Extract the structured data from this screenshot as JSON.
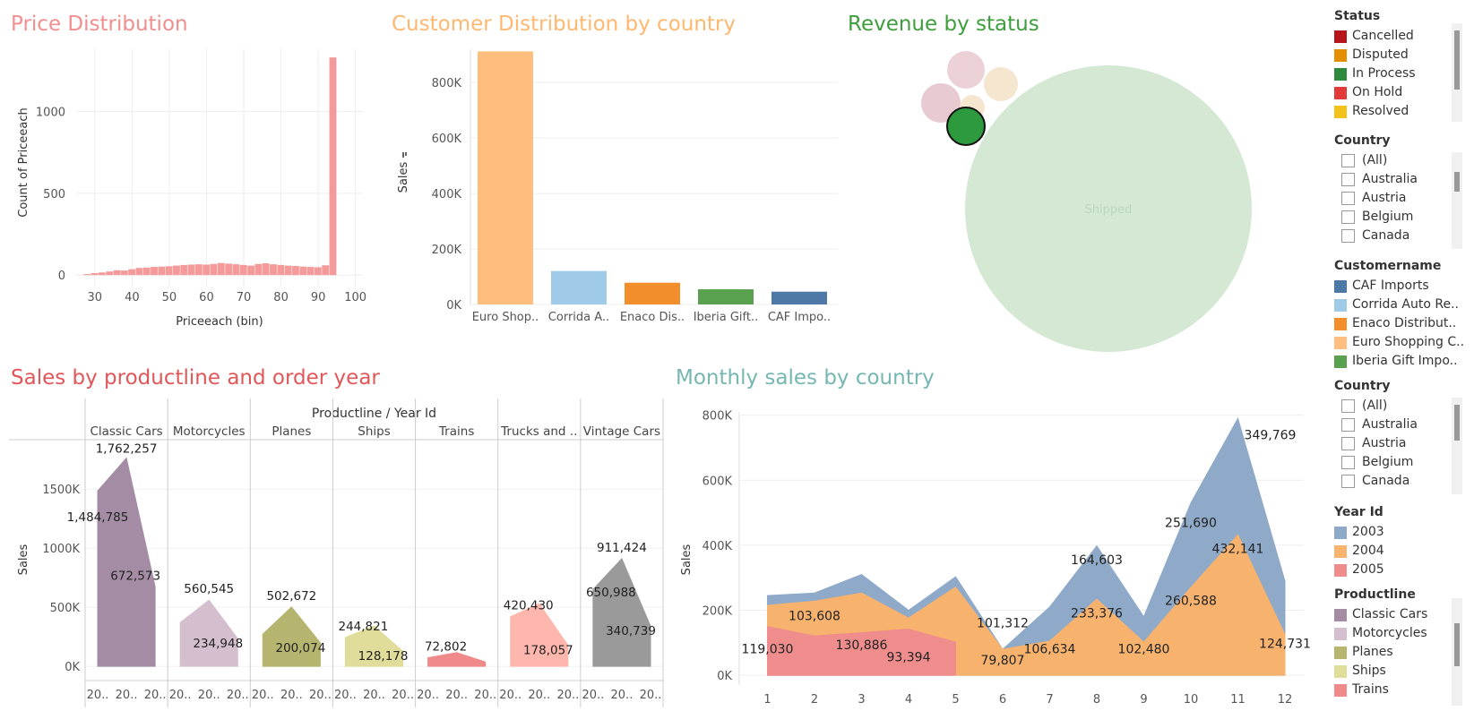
{
  "titles": {
    "price": "Price Distribution",
    "customer": "Customer Distribution by country",
    "revenue": "Revenue by status",
    "productline": "Sales by productline and order year",
    "monthly": "Monthly sales by country"
  },
  "colors": {
    "price_title": "#f28e8e",
    "customer_title": "#ffb870",
    "revenue_title": "#3c9e3c",
    "productline_title": "#e15759",
    "monthly_title": "#76b7b2"
  },
  "price_chart": {
    "type": "bar",
    "xlabel": "Priceeach (bin)",
    "ylabel": "Count of Priceeach",
    "xticks": [
      30,
      40,
      50,
      60,
      70,
      80,
      90,
      100
    ],
    "yticks": [
      0,
      500,
      1000
    ],
    "ylim": [
      -70,
      1380
    ],
    "xlim": [
      25,
      102
    ],
    "bin_start": 27,
    "bin_width": 2,
    "values": [
      6,
      12,
      16,
      22,
      30,
      28,
      36,
      44,
      46,
      50,
      52,
      54,
      58,
      62,
      64,
      66,
      64,
      68,
      74,
      70,
      66,
      62,
      58,
      68,
      72,
      66,
      62,
      58,
      56,
      52,
      50,
      48,
      60,
      1330
    ]
  },
  "customer_chart": {
    "type": "bar",
    "ylabel": "Sales",
    "ylim": [
      0,
      920000
    ],
    "yticks": [
      0,
      200000,
      400000,
      600000,
      800000
    ],
    "ytick_labels": [
      "0K",
      "200K",
      "400K",
      "600K",
      "800K"
    ],
    "categories": [
      "Euro Shop..",
      "Corrida A..",
      "Enaco Dis..",
      "Iberia Gift..",
      "CAF Impo.."
    ],
    "values": [
      912294,
      120615,
      78411,
      54724,
      46148
    ],
    "colors": [
      "#ffbe7d",
      "#a0cbe8",
      "#f28e2b",
      "#59a14f",
      "#4e79a7"
    ]
  },
  "revenue_chart": {
    "type": "bubble",
    "label": "Shipped",
    "bubbles": [
      {
        "status": "Shipped",
        "value": 8400000,
        "color": "#d5e8d4"
      },
      {
        "status": "Cancelled",
        "value": 194487,
        "color": "#e8cbd0"
      },
      {
        "status": "Disputed",
        "value": 72212,
        "color": "#f5e6cf"
      },
      {
        "status": "Resolved",
        "value": 150718,
        "color": "#f5e6cf"
      },
      {
        "status": "On Hold",
        "value": 178124,
        "color": "#ecd2d6"
      },
      {
        "status": "In Process",
        "value": 144730,
        "color": "#2e9a3e"
      }
    ]
  },
  "productline_chart": {
    "type": "area",
    "header": "Productline  /  Year Id",
    "ylabel": "Sales",
    "ylim": [
      -120000,
      1850000
    ],
    "yticks": [
      0,
      500000,
      1000000,
      1500000
    ],
    "ytick_labels": [
      "0K",
      "500K",
      "1000K",
      "1500K"
    ],
    "xtick_label": "20..",
    "panels": [
      {
        "name": "Classic Cars",
        "color": "#a58ca5",
        "values": [
          1484785,
          1762257,
          672573
        ],
        "labels": [
          "1,484,785",
          "1,762,257",
          "672,573"
        ]
      },
      {
        "name": "Motorcycles",
        "color": "#d4bfcf",
        "values": [
          370896,
          560545,
          234948
        ],
        "labels": [
          "",
          "560,545",
          "234,948"
        ]
      },
      {
        "name": "Planes",
        "color": "#b5b56f",
        "values": [
          272258,
          502672,
          200074
        ],
        "labels": [
          "",
          "502,672",
          "200,074"
        ]
      },
      {
        "name": "Ships",
        "color": "#e0dc9a",
        "values": [
          244821,
          341437,
          128178
        ],
        "labels": [
          "244,821",
          "",
          "128,178"
        ]
      },
      {
        "name": "Trains",
        "color": "#f08a8a",
        "values": [
          72802,
          116524,
          36917
        ],
        "labels": [
          "72,802",
          "",
          ""
        ]
      },
      {
        "name": "Trucks and ..",
        "color": "#ffb6ad",
        "values": [
          420430,
          529302,
          178057
        ],
        "labels": [
          "420,430",
          "",
          "178,057"
        ]
      },
      {
        "name": "Vintage Cars",
        "color": "#9a9a9a",
        "values": [
          650988,
          911424,
          340739
        ],
        "labels": [
          "650,988",
          "911,424",
          "340,739"
        ]
      }
    ]
  },
  "monthly_chart": {
    "type": "area",
    "ylabel": "Sales",
    "ylim": [
      -30000,
      810000
    ],
    "yticks": [
      0,
      200000,
      400000,
      600000,
      800000
    ],
    "ytick_labels": [
      "0K",
      "200K",
      "400K",
      "600K",
      "800K"
    ],
    "x": [
      1,
      2,
      3,
      4,
      5,
      6,
      7,
      8,
      9,
      10,
      11,
      12
    ],
    "series": [
      {
        "name": "2003",
        "color": "#8fa9c9",
        "values": [
          245000,
          253000,
          310000,
          200000,
          303000,
          80000,
          210000,
          398000,
          180000,
          530000,
          790000,
          290000
        ]
      },
      {
        "name": "2004",
        "color": "#f7b36d",
        "values": [
          215000,
          228000,
          253000,
          176000,
          271000,
          80000,
          105000,
          234000,
          102000,
          270000,
          432000,
          125000
        ]
      },
      {
        "name": "2005",
        "color": "#ef8c8c",
        "values": [
          150000,
          121000,
          131000,
          142000,
          102000,
          null,
          null,
          null,
          null,
          null,
          null,
          null
        ]
      }
    ],
    "labels": [
      {
        "x": 1,
        "y": 82000,
        "text": "119,030"
      },
      {
        "x": 2,
        "y": 183000,
        "text": "103,608"
      },
      {
        "x": 3,
        "y": 94000,
        "text": "130,886"
      },
      {
        "x": 4,
        "y": 57000,
        "text": "93,394"
      },
      {
        "x": 6,
        "y": 47000,
        "text": "79,807"
      },
      {
        "x": 6,
        "y": 162000,
        "text": "101,312"
      },
      {
        "x": 7,
        "y": 82000,
        "text": "106,634"
      },
      {
        "x": 8,
        "y": 192000,
        "text": "233,376"
      },
      {
        "x": 8,
        "y": 355000,
        "text": "164,603"
      },
      {
        "x": 9,
        "y": 82000,
        "text": "102,480"
      },
      {
        "x": 10,
        "y": 230000,
        "text": "260,588"
      },
      {
        "x": 10,
        "y": 470000,
        "text": "251,690"
      },
      {
        "x": 11,
        "y": 390000,
        "text": "432,141"
      },
      {
        "x": 11,
        "y": 740000,
        "text": "349,769"
      },
      {
        "x": 12,
        "y": 98000,
        "text": "124,731"
      }
    ]
  },
  "legends": {
    "status": {
      "title": "Status",
      "items": [
        {
          "label": "Cancelled",
          "color": "#b5151b"
        },
        {
          "label": "Disputed",
          "color": "#e38f00"
        },
        {
          "label": "In Process",
          "color": "#2e8b3e"
        },
        {
          "label": "On Hold",
          "color": "#e03a3a"
        },
        {
          "label": "Resolved",
          "color": "#f3c21a"
        }
      ]
    },
    "country1": {
      "title": "Country",
      "items": [
        "(All)",
        "Australia",
        "Austria",
        "Belgium",
        "Canada"
      ]
    },
    "customername": {
      "title": "Customername",
      "items": [
        {
          "label": "CAF Imports",
          "color": "#4e79a7"
        },
        {
          "label": "Corrida Auto Re..",
          "color": "#a0cbe8"
        },
        {
          "label": "Enaco Distribut..",
          "color": "#f28e2b"
        },
        {
          "label": "Euro Shopping C..",
          "color": "#ffbe7d"
        },
        {
          "label": "Iberia Gift Impo..",
          "color": "#59a14f"
        }
      ]
    },
    "country2": {
      "title": "Country",
      "items": [
        "(All)",
        "Australia",
        "Austria",
        "Belgium",
        "Canada"
      ]
    },
    "year": {
      "title": "Year Id",
      "items": [
        {
          "label": "2003",
          "color": "#8fa9c9"
        },
        {
          "label": "2004",
          "color": "#f7b36d"
        },
        {
          "label": "2005",
          "color": "#ef8c8c"
        }
      ]
    },
    "productline": {
      "title": "Productline",
      "items": [
        {
          "label": "Classic Cars",
          "color": "#a58ca5"
        },
        {
          "label": "Motorcycles",
          "color": "#d4bfcf"
        },
        {
          "label": "Planes",
          "color": "#b5b56f"
        },
        {
          "label": "Ships",
          "color": "#e0dc9a"
        },
        {
          "label": "Trains",
          "color": "#f08a8a"
        }
      ]
    }
  }
}
